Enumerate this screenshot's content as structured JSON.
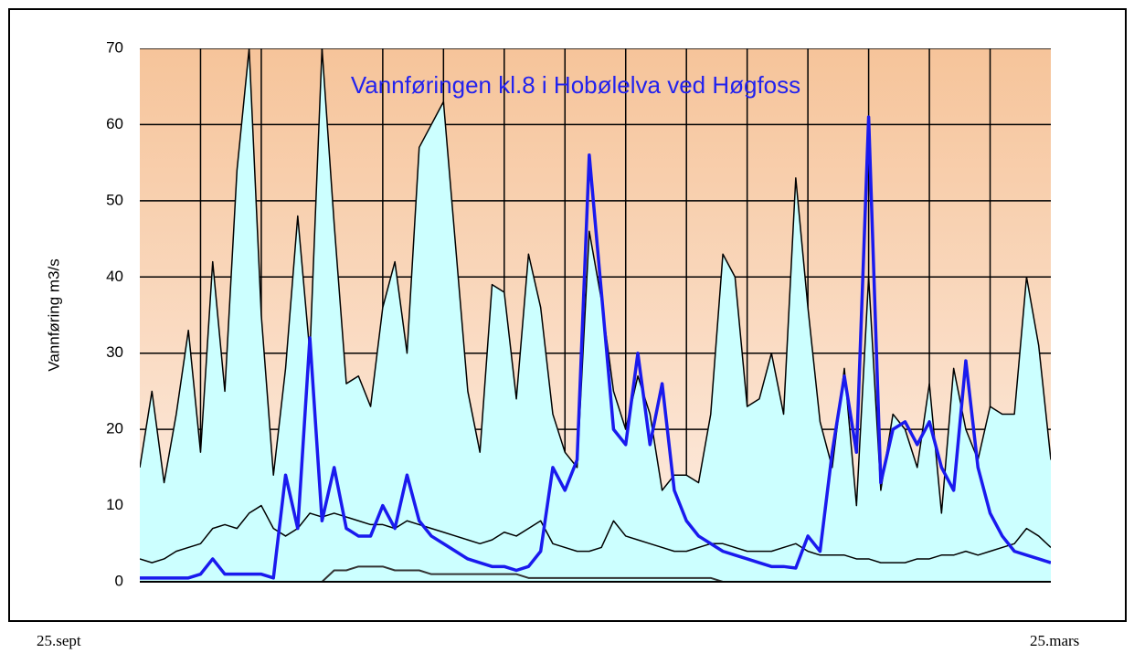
{
  "chart_data": {
    "type": "line",
    "title": "Vannføringen kl.8 i Hobølelva ved Høgfoss",
    "y_label": "Vannføring m3/s",
    "x_labels": [
      "25.sept",
      "25.mars"
    ],
    "ylim": [
      0,
      70
    ],
    "yticks": [
      0,
      10,
      20,
      30,
      40,
      50,
      60,
      70
    ],
    "grid": true,
    "title_color": "#2222ee",
    "series": [
      {
        "color": "#000000",
        "fill": "#ccffff",
        "width": 1.5,
        "values": [
          15,
          25,
          13,
          22,
          33,
          17,
          42,
          25,
          54,
          70,
          35,
          14,
          28,
          48,
          30,
          70,
          47,
          26,
          27,
          23,
          36,
          42,
          30,
          57,
          60,
          63,
          44,
          25,
          17,
          39,
          38,
          24,
          43,
          36,
          22,
          17,
          15,
          46,
          37,
          25,
          20,
          27,
          22,
          12,
          14,
          14,
          13,
          22,
          43,
          40,
          23,
          24,
          30,
          22,
          53,
          36,
          21,
          15,
          28,
          10,
          40,
          12,
          22,
          20,
          15,
          26,
          9,
          28,
          20,
          16,
          23,
          22,
          22,
          40,
          31,
          16
        ]
      },
      {
        "color": "#000000",
        "width": 1.5,
        "values": [
          3,
          2.5,
          3,
          4,
          4.5,
          5,
          7,
          7.5,
          7,
          9,
          10,
          7,
          6,
          7,
          9,
          8.5,
          9,
          8.5,
          8,
          7.5,
          7.5,
          7,
          8,
          7.5,
          7,
          6.5,
          6,
          5.5,
          5,
          5.5,
          6.5,
          6,
          7,
          8,
          5,
          4.5,
          4,
          4,
          4.5,
          8,
          6,
          5.5,
          5,
          4.5,
          4,
          4,
          4.5,
          5,
          5,
          4.5,
          4,
          4,
          4,
          4.5,
          5,
          4,
          3.5,
          3.5,
          3.5,
          3,
          3,
          2.5,
          2.5,
          2.5,
          3,
          3,
          3.5,
          3.5,
          4,
          3.5,
          4,
          4.5,
          5,
          7,
          6,
          4.5
        ]
      },
      {
        "color": "#333333",
        "width": 2,
        "values": [
          0,
          0,
          0,
          0,
          0,
          0,
          0,
          0,
          0,
          0,
          0,
          0,
          0,
          0,
          0,
          0,
          1.5,
          1.5,
          2,
          2,
          2,
          1.5,
          1.5,
          1.5,
          1,
          1,
          1,
          1,
          1,
          1,
          1,
          1,
          0.5,
          0.5,
          0.5,
          0.5,
          0.5,
          0.5,
          0.5,
          0.5,
          0.5,
          0.5,
          0.5,
          0.5,
          0.5,
          0.5,
          0.5,
          0.5,
          0,
          0,
          0,
          0,
          0,
          0,
          0,
          0,
          0,
          0,
          0,
          0,
          0,
          0,
          0,
          0,
          0,
          0,
          0,
          0,
          0,
          0,
          0,
          0,
          0,
          0,
          0,
          0
        ]
      },
      {
        "color": "#1a1aee",
        "width": 3.5,
        "values": [
          0.5,
          0.5,
          0.5,
          0.5,
          0.5,
          1,
          3,
          1,
          1,
          1,
          1,
          0.5,
          14,
          7,
          32,
          8,
          15,
          7,
          6,
          6,
          10,
          7,
          14,
          8,
          6,
          5,
          4,
          3,
          2.5,
          2,
          2,
          1.5,
          2,
          4,
          15,
          12,
          16,
          56,
          38,
          20,
          18,
          30,
          18,
          26,
          12,
          8,
          6,
          5,
          4,
          3.5,
          3,
          2.5,
          2,
          2,
          1.8,
          6,
          4,
          17,
          27,
          17,
          61,
          13,
          20,
          21,
          18,
          21,
          15,
          12,
          29,
          15,
          9,
          6,
          4,
          3.5,
          3,
          2.5
        ]
      }
    ]
  }
}
